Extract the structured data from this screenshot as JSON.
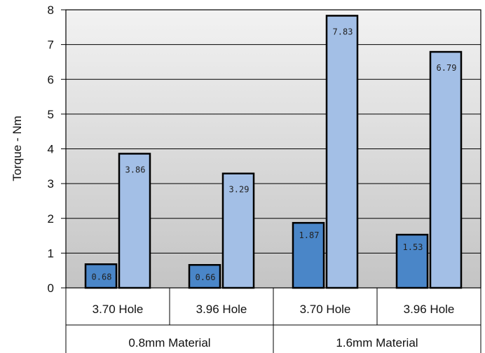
{
  "chart_data": {
    "type": "bar",
    "categories": [
      "3.70 Hole",
      "3.96 Hole",
      "3.70 Hole",
      "3.96 Hole"
    ],
    "groups": [
      {
        "label": "0.8mm Material",
        "categories": [
          0,
          1
        ]
      },
      {
        "label": "1.6mm Material",
        "categories": [
          2,
          3
        ]
      }
    ],
    "series": [
      {
        "values": [
          0.68,
          0.66,
          1.87,
          1.53
        ],
        "value_labels": [
          "0.68",
          "0.66",
          "1.87",
          "1.53"
        ],
        "color": "#4a86c8"
      },
      {
        "values": [
          3.86,
          3.29,
          7.83,
          6.79
        ],
        "value_labels": [
          "3.86",
          "3.29",
          "7.83",
          "6.79"
        ],
        "color": "#a3bfe6"
      }
    ],
    "ylabel": "Torque - Nm",
    "ylim": [
      0,
      8
    ],
    "yticks": [
      "0",
      "1",
      "2",
      "3",
      "4",
      "5",
      "6",
      "7",
      "8"
    ],
    "grid": true,
    "legend": "none",
    "plot_background": "#d8d8d8",
    "gridline_color": "#000000"
  }
}
